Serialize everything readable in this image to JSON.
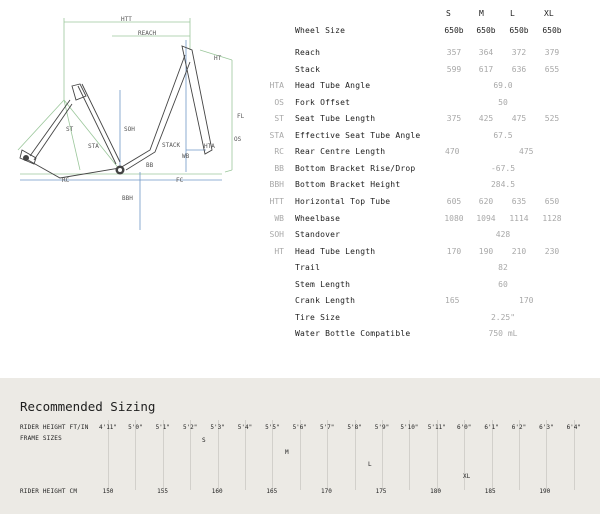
{
  "diagram": {
    "labels": [
      "HTT",
      "REACH",
      "HT",
      "FL",
      "ST",
      "SOH",
      "STA",
      "STACK",
      "HTA",
      "OS",
      "WB",
      "BB",
      "RC",
      "FC",
      "BBH"
    ],
    "colors": {
      "green": "#9bc79b",
      "blue": "#6f97c6",
      "frame": "#444444"
    }
  },
  "sizes": [
    "S",
    "M",
    "L",
    "XL"
  ],
  "wheel_size": {
    "name": "Wheel Size",
    "values": [
      "650b",
      "650b",
      "650b",
      "650b"
    ]
  },
  "rows": [
    {
      "abbr": "",
      "name": "Reach",
      "values": [
        "357",
        "364",
        "372",
        "379"
      ]
    },
    {
      "abbr": "",
      "name": "Stack",
      "values": [
        "599",
        "617",
        "636",
        "655"
      ]
    },
    {
      "abbr": "HTA",
      "name": "Head Tube Angle",
      "span": "69.0"
    },
    {
      "abbr": "OS",
      "name": "Fork Offset",
      "span": "50"
    },
    {
      "abbr": "ST",
      "name": "Seat Tube Length",
      "values": [
        "375",
        "425",
        "475",
        "525"
      ]
    },
    {
      "abbr": "STA",
      "name": "Effective Seat Tube Angle",
      "span": "67.5"
    },
    {
      "abbr": "RC",
      "name": "Rear Centre Length",
      "pair": [
        "470",
        "475"
      ]
    },
    {
      "abbr": "BB",
      "name": "Bottom Bracket Rise/Drop",
      "span": "-67.5"
    },
    {
      "abbr": "BBH",
      "name": "Bottom Bracket Height",
      "span": "284.5"
    },
    {
      "abbr": "HTT",
      "name": "Horizontal Top Tube",
      "values": [
        "605",
        "620",
        "635",
        "650"
      ]
    },
    {
      "abbr": "WB",
      "name": "Wheelbase",
      "values": [
        "1080",
        "1094",
        "1114",
        "1128"
      ]
    },
    {
      "abbr": "SOH",
      "name": "Standover",
      "span": "428"
    },
    {
      "abbr": "HT",
      "name": "Head Tube Length",
      "values": [
        "170",
        "190",
        "210",
        "230"
      ]
    },
    {
      "abbr": "",
      "name": "Trail",
      "span": "82"
    },
    {
      "abbr": "",
      "name": "Stem Length",
      "span": "60"
    },
    {
      "abbr": "",
      "name": "Crank Length",
      "pair": [
        "165",
        "170"
      ]
    },
    {
      "abbr": "",
      "name": "Tire Size",
      "span": "2.25\""
    },
    {
      "abbr": "",
      "name": "Water Bottle Compatible",
      "span": "750 mL"
    }
  ],
  "sizing": {
    "title": "Recommended Sizing",
    "rider_height_ftin_label": "RIDER HEIGHT FT/IN",
    "frame_sizes_label": "FRAME SIZES",
    "rider_height_cm_label": "RIDER HEIGHT CM",
    "ftin_ticks": [
      "4'11\"",
      "5'0\"",
      "5'1\"",
      "5'2\"",
      "5'3\"",
      "5'4\"",
      "5'5\"",
      "5'6\"",
      "5'7\"",
      "5'8\"",
      "5'9\"",
      "5'10\"",
      "5'11\"",
      "6'0\"",
      "6'1\"",
      "6'2\"",
      "6'3\"",
      "6'4\""
    ],
    "cm_ticks": [
      "150",
      "155",
      "160",
      "165",
      "170",
      "175",
      "180",
      "185",
      "190"
    ],
    "frame_markers": [
      "S",
      "M",
      "L",
      "XL"
    ]
  }
}
